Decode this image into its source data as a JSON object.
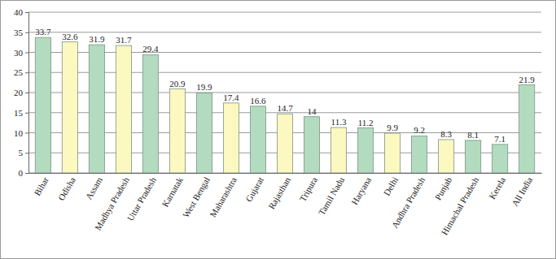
{
  "chart_data": {
    "type": "bar",
    "categories": [
      "Bihar",
      "Odisha",
      "Assam",
      "Madhya Pradesh",
      "Uttar Pradesh",
      "Karnatak",
      "West Bengal",
      "Maharashtra",
      "Gujarat",
      "Rajasthan",
      "Tripura",
      "Tamil Nadu",
      "Haryana",
      "Delhi",
      "Andhra Pradesh",
      "Punjab",
      "Himachal Pradesh",
      "Kerela",
      "All India"
    ],
    "values": [
      33.7,
      32.6,
      31.9,
      31.7,
      29.4,
      20.9,
      19.9,
      17.4,
      16.6,
      14.7,
      14,
      11.3,
      11.2,
      9.9,
      9.2,
      8.3,
      8.1,
      7.1,
      21.9
    ],
    "colors": [
      "#b2dbbf",
      "#fbf8c0",
      "#b2dbbf",
      "#fbf8c0",
      "#b2dbbf",
      "#fbf8c0",
      "#b2dbbf",
      "#fbf8c0",
      "#b2dbbf",
      "#fbf8c0",
      "#b2dbbf",
      "#fbf8c0",
      "#b2dbbf",
      "#fbf8c0",
      "#b2dbbf",
      "#fbf8c0",
      "#b2dbbf",
      "#b2dbbf",
      "#b2dbbf"
    ],
    "ylim": [
      0,
      40
    ],
    "yticks": [
      0,
      5,
      10,
      15,
      20,
      25,
      30,
      35,
      40
    ],
    "grid": true,
    "data_labels": true
  }
}
